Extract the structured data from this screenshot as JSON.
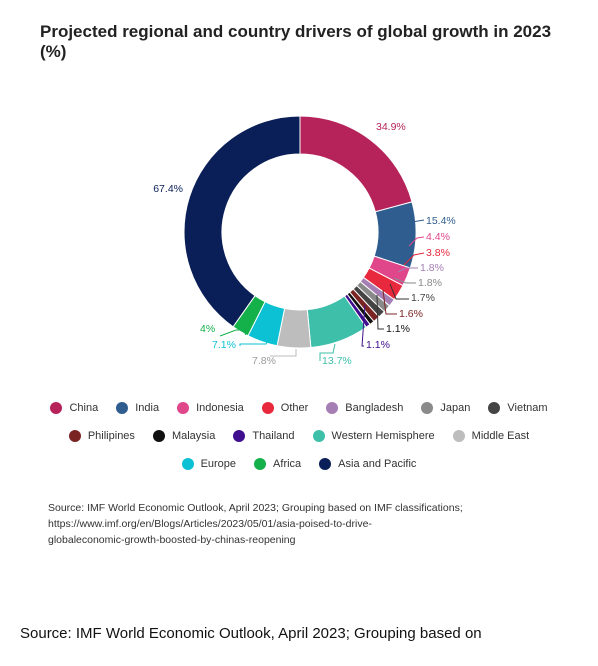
{
  "chart_data": {
    "type": "pie",
    "title": "Projected regional and country drivers of global growth in 2023 (%)",
    "slices": [
      {
        "name": "China",
        "value": 34.9,
        "label": "34.9%",
        "color": "#b5235a"
      },
      {
        "name": "India",
        "value": 15.4,
        "label": "15.4%",
        "color": "#2f5d8f"
      },
      {
        "name": "Indonesia",
        "value": 4.4,
        "label": "4.4%",
        "color": "#e0468a"
      },
      {
        "name": "Other",
        "value": 3.8,
        "label": "3.8%",
        "color": "#e8283c"
      },
      {
        "name": "Bangladesh",
        "value": 1.8,
        "label": "1.8%",
        "color": "#a57fb4"
      },
      {
        "name": "Japan",
        "value": 1.8,
        "label": "1.8%",
        "color": "#8a8a8a"
      },
      {
        "name": "Vietnam",
        "value": 1.7,
        "label": "1.7%",
        "color": "#444444"
      },
      {
        "name": "Philipines",
        "value": 1.6,
        "label": "1.6%",
        "color": "#7a2424"
      },
      {
        "name": "Malaysia",
        "value": 1.1,
        "label": "1.1%",
        "color": "#111111"
      },
      {
        "name": "Thailand",
        "value": 1.1,
        "label": "1.1%",
        "color": "#3f0f8f"
      },
      {
        "name": "Western Hemisphere",
        "value": 13.7,
        "label": "13.7%",
        "color": "#3dbfaa"
      },
      {
        "name": "Middle East",
        "value": 7.8,
        "label": "7.8%",
        "color": "#bdbdbd"
      },
      {
        "name": "Europe",
        "value": 7.1,
        "label": "7.1%",
        "color": "#0cc1d4"
      },
      {
        "name": "Africa",
        "value": 4,
        "label": "4%",
        "color": "#14b04a"
      },
      {
        "name": "Asia and Pacific",
        "value": 67.4,
        "label": "67.4%",
        "color": "#0a1f57"
      }
    ],
    "legend_position": "bottom",
    "legend_rows": [
      [
        "China",
        "India",
        "Indonesia",
        "Other",
        "Bangladesh",
        "Japan",
        "Vietnam"
      ],
      [
        "Philipines",
        "Malaysia",
        "Thailand",
        "Western Hemisphere",
        "Middle East"
      ],
      [
        "Europe",
        "Africa",
        "Asia and Pacific"
      ]
    ]
  },
  "source_lines": [
    "Source: IMF World Economic Outlook, April 2023; Grouping based on IMF classifications;",
    "https://www.imf.org/en/Blogs/Articles/2023/05/01/asia-poised-to-drive-",
    "globaleconomic-growth-boosted-by-chinas-reopening"
  ],
  "caption": "Source: IMF World Economic Outlook, April 2023; Grouping based on"
}
